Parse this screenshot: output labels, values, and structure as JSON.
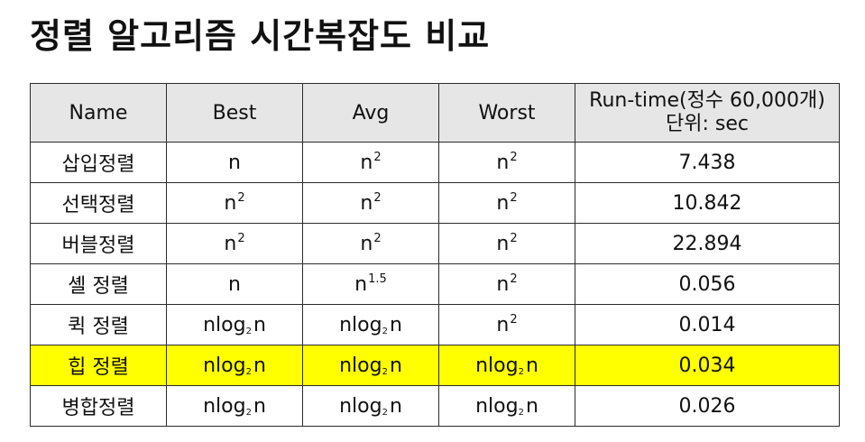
{
  "title": "정렬 알고리즘 시간복잡도 비교",
  "table": {
    "headers": {
      "name": "Name",
      "best": "Best",
      "avg": "Avg",
      "worst": "Worst",
      "runtime_line1": "Run-time(정수 60,000개)",
      "runtime_line2": "단위: sec"
    },
    "rows": [
      {
        "name": "삽입정렬",
        "best": {
          "base": "n",
          "exp": "",
          "log_base": "",
          "tail": ""
        },
        "avg": {
          "base": "n",
          "exp": "2",
          "log_base": "",
          "tail": ""
        },
        "worst": {
          "base": "n",
          "exp": "2",
          "log_base": "",
          "tail": ""
        },
        "runtime": "7.438",
        "highlighted": false
      },
      {
        "name": "선택정렬",
        "best": {
          "base": "n",
          "exp": "2",
          "log_base": "",
          "tail": ""
        },
        "avg": {
          "base": "n",
          "exp": "2",
          "log_base": "",
          "tail": ""
        },
        "worst": {
          "base": "n",
          "exp": "2",
          "log_base": "",
          "tail": ""
        },
        "runtime": "10.842",
        "highlighted": false
      },
      {
        "name": "버블정렬",
        "best": {
          "base": "n",
          "exp": "2",
          "log_base": "",
          "tail": ""
        },
        "avg": {
          "base": "n",
          "exp": "2",
          "log_base": "",
          "tail": ""
        },
        "worst": {
          "base": "n",
          "exp": "2",
          "log_base": "",
          "tail": ""
        },
        "runtime": "22.894",
        "highlighted": false
      },
      {
        "name": "셸 정렬",
        "best": {
          "base": "n",
          "exp": "",
          "log_base": "",
          "tail": ""
        },
        "avg": {
          "base": "n",
          "exp": "1.5",
          "log_base": "",
          "tail": ""
        },
        "worst": {
          "base": "n",
          "exp": "2",
          "log_base": "",
          "tail": ""
        },
        "runtime": "0.056",
        "highlighted": false
      },
      {
        "name": "퀵 정렬",
        "best": {
          "base": "nlog",
          "exp": "",
          "log_base": "2",
          "tail": "n"
        },
        "avg": {
          "base": "nlog",
          "exp": "",
          "log_base": "2",
          "tail": "n"
        },
        "worst": {
          "base": "n",
          "exp": "2",
          "log_base": "",
          "tail": ""
        },
        "runtime": "0.014",
        "highlighted": false
      },
      {
        "name": "힙 정렬",
        "best": {
          "base": "nlog",
          "exp": "",
          "log_base": "2",
          "tail": "n"
        },
        "avg": {
          "base": "nlog",
          "exp": "",
          "log_base": "2",
          "tail": "n"
        },
        "worst": {
          "base": "nlog",
          "exp": "",
          "log_base": "2",
          "tail": "n"
        },
        "runtime": "0.034",
        "highlighted": true
      },
      {
        "name": "병합정렬",
        "best": {
          "base": "nlog",
          "exp": "",
          "log_base": "2",
          "tail": "n"
        },
        "avg": {
          "base": "nlog",
          "exp": "",
          "log_base": "2",
          "tail": "n"
        },
        "worst": {
          "base": "nlog",
          "exp": "",
          "log_base": "2",
          "tail": "n"
        },
        "runtime": "0.026",
        "highlighted": false
      }
    ]
  },
  "colors": {
    "highlight": "#ffff00",
    "header_bg": "#e6e6e6",
    "border": "#2b2b2b"
  }
}
